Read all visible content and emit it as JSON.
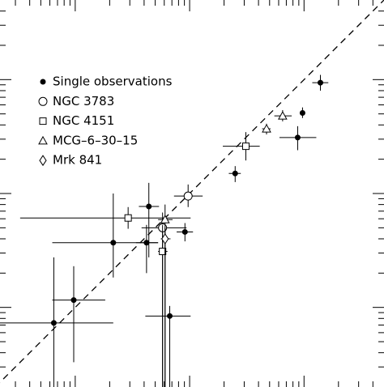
{
  "chart_data": {
    "type": "scatter",
    "xscale": "log",
    "yscale": "log",
    "xlim": [
      0.22,
      500
    ],
    "ylim": [
      0.2,
      500
    ],
    "xticks": [
      1,
      10,
      100
    ],
    "yticks": [
      1,
      10,
      100
    ],
    "xminorticks": [
      0.3,
      0.4,
      0.5,
      0.6,
      0.7,
      0.8,
      0.9,
      2,
      3,
      4,
      5,
      6,
      7,
      8,
      9,
      20,
      30,
      40,
      50,
      60,
      70,
      80,
      90,
      200,
      300,
      400
    ],
    "yminorticks": [
      0.3,
      0.4,
      0.5,
      0.6,
      0.7,
      0.8,
      0.9,
      2,
      3,
      4,
      5,
      6,
      7,
      8,
      9,
      20,
      30,
      40,
      50,
      60,
      70,
      80,
      90,
      200,
      300,
      400
    ],
    "reference_line": {
      "x": [
        0.2,
        500
      ],
      "y": [
        0.2,
        500
      ],
      "color": "#000000"
    },
    "legend": "upper left",
    "series": [
      {
        "name": "Single observations",
        "marker": "dot",
        "color": "#000000",
        "x": [
          139,
          97,
          88,
          25,
          9.1,
          4.4,
          4.2,
          2.15,
          0.97,
          0.65,
          6.7
        ],
        "y": [
          94,
          51,
          31,
          15,
          4.6,
          7.7,
          3.7,
          3.7,
          1.16,
          0.73,
          0.84
        ],
        "x_low": [
          118,
          92,
          61,
          22,
          7.7,
          3.6,
          3.4,
          0.63,
          0.63,
          0.22,
          4.1
        ],
        "x_high": [
          163,
          102,
          128,
          28,
          10.7,
          5.4,
          5.3,
          5.3,
          1.83,
          2.15,
          10.2
        ],
        "y_low": [
          80,
          46,
          24,
          12.6,
          3.8,
          2.75,
          2.0,
          1.83,
          0.33,
          0.2,
          0.2
        ],
        "y_high": [
          110,
          57,
          39,
          17.4,
          5.5,
          12.4,
          5.3,
          10,
          2.3,
          2.75,
          1.03
        ]
      },
      {
        "name": "NGC 3783",
        "marker": "circle",
        "color": "#000000",
        "x": [
          9.7,
          5.8
        ],
        "y": [
          9.5,
          5.0
        ],
        "x_low": [
          7.3,
          3.8
        ],
        "x_high": [
          13,
          9.4
        ],
        "y_low": [
          7.6,
          0.2
        ],
        "y_high": [
          12.0,
          6.8
        ]
      },
      {
        "name": "NGC 4151",
        "marker": "square",
        "color": "#000000",
        "x": [
          31,
          2.9,
          5.8
        ],
        "y": [
          26,
          6.1,
          3.1
        ],
        "x_low": [
          19.5,
          0.33,
          5.3
        ],
        "x_high": [
          41,
          10.2,
          6.4
        ],
        "y_low": [
          19.5,
          4.9,
          0.2
        ],
        "y_high": [
          34.6,
          7.6,
          5.3
        ]
      },
      {
        "name": "MCG–6–30–15",
        "marker": "triangle",
        "color": "#000000",
        "x": [
          65,
          47,
          6.1
        ],
        "y": [
          48,
          37,
          5.9
        ],
        "x_low": [
          55,
          43,
          5.3
        ],
        "x_high": [
          78,
          51,
          7.1
        ],
        "y_low": [
          43,
          33,
          0.2
        ],
        "y_high": [
          54,
          41,
          8.0
        ]
      },
      {
        "name": "Mrk 841",
        "marker": "diamond",
        "color": "#000000",
        "x": [
          6.1
        ],
        "y": [
          4.0
        ],
        "x_low": [
          5.6
        ],
        "x_high": [
          6.8
        ],
        "y_low": [
          0.2
        ],
        "y_high": [
          5.0
        ]
      }
    ]
  }
}
